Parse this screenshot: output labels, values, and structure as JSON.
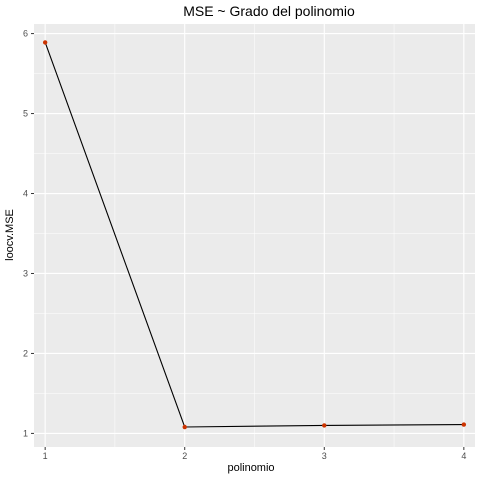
{
  "chart_data": {
    "type": "line",
    "title": "MSE ~ Grado del polinomio",
    "xlabel": "polinomio",
    "ylabel": "loocv.MSE",
    "x": [
      1,
      2,
      3,
      4
    ],
    "y": [
      5.89,
      1.08,
      1.1,
      1.11
    ],
    "xlim": [
      0.92,
      4.08
    ],
    "ylim": [
      0.83,
      6.12
    ],
    "x_ticks": [
      "1",
      "2",
      "3",
      "4"
    ],
    "y_ticks": [
      "1",
      "2",
      "3",
      "4",
      "5",
      "6"
    ],
    "grid": true,
    "legend": "none",
    "colors": {
      "panel": "#ebebeb",
      "grid_major": "#ffffff",
      "line": "#000000",
      "point": "#cc3300"
    }
  }
}
